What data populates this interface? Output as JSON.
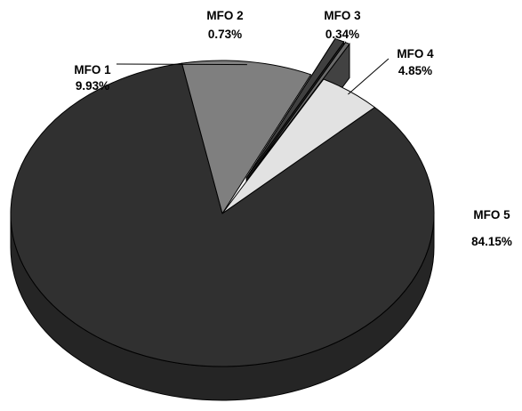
{
  "chart_data": {
    "type": "pie",
    "title": "",
    "categories": [
      "MFO 1",
      "MFO 2",
      "MFO 3",
      "MFO 4",
      "MFO 5"
    ],
    "values": [
      9.93,
      0.73,
      0.34,
      4.85,
      84.15
    ],
    "value_labels": [
      "9.93%",
      "0.73%",
      "0.34%",
      "4.85%",
      "84.15%"
    ],
    "colors": [
      "#7f7f7f",
      "#404040",
      "#6a6a6a",
      "#e2e2e2",
      "#303030"
    ],
    "exploded": [
      "MFO 2",
      "MFO 3"
    ],
    "legend": "none",
    "style": "3d"
  }
}
